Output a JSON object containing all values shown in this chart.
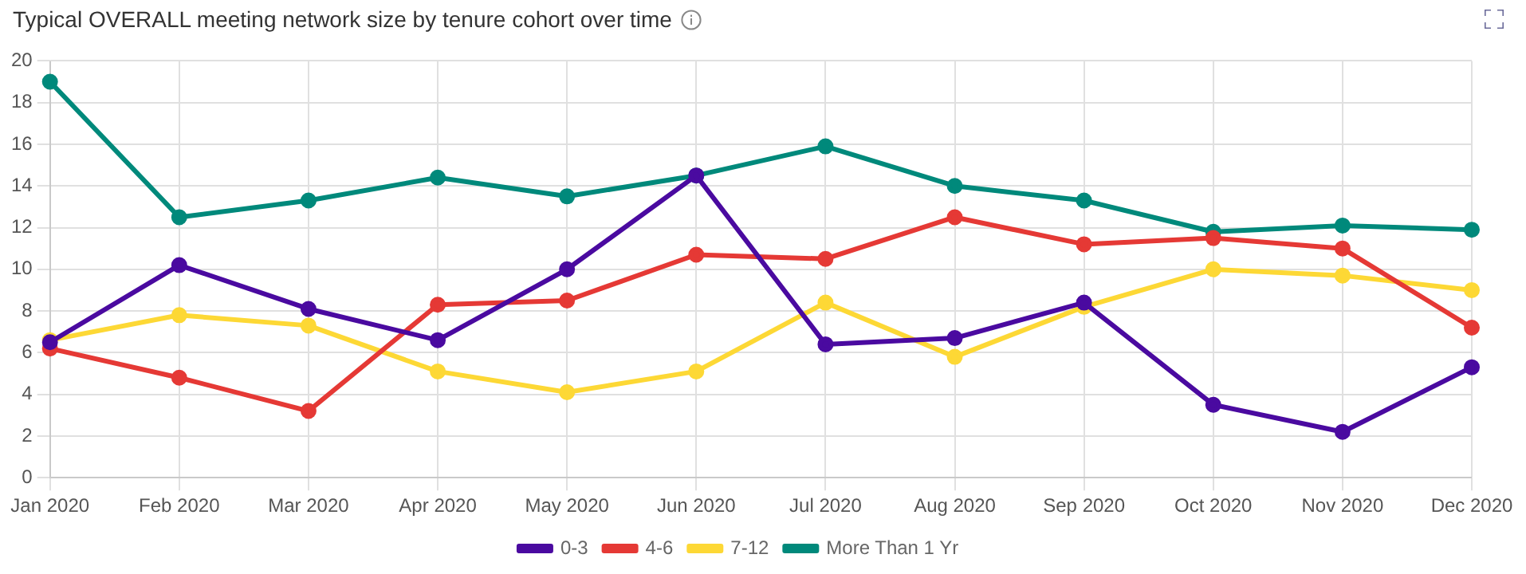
{
  "chart_data": {
    "type": "line",
    "title": "Typical OVERALL meeting network size by tenure cohort over time",
    "categories": [
      "Jan 2020",
      "Feb 2020",
      "Mar 2020",
      "Apr 2020",
      "May 2020",
      "Jun 2020",
      "Jul 2020",
      "Aug 2020",
      "Sep 2020",
      "Oct 2020",
      "Nov 2020",
      "Dec 2020"
    ],
    "series": [
      {
        "name": "0-3",
        "color": "#4a0aa0",
        "values": [
          6.5,
          10.2,
          8.1,
          6.6,
          10.0,
          14.5,
          6.4,
          6.7,
          8.4,
          3.5,
          2.2,
          5.3
        ]
      },
      {
        "name": "4-6",
        "color": "#e53935",
        "values": [
          6.2,
          4.8,
          3.2,
          8.3,
          8.5,
          10.7,
          10.5,
          12.5,
          11.2,
          11.5,
          11.0,
          7.2
        ]
      },
      {
        "name": "7-12",
        "color": "#fdd835",
        "values": [
          6.6,
          7.8,
          7.3,
          5.1,
          4.1,
          5.1,
          8.4,
          5.8,
          8.2,
          10.0,
          9.7,
          9.0
        ]
      },
      {
        "name": "More Than 1 Yr",
        "color": "#00897b",
        "values": [
          19.0,
          12.5,
          13.3,
          14.4,
          13.5,
          14.5,
          15.9,
          14.0,
          13.3,
          11.8,
          12.1,
          11.9
        ]
      }
    ],
    "ylim": [
      0,
      20
    ],
    "yticks": [
      0,
      2,
      4,
      6,
      8,
      10,
      12,
      14,
      16,
      18,
      20
    ],
    "grid": true,
    "legend": "bottom",
    "marker": "circle",
    "line_style": "solid"
  }
}
